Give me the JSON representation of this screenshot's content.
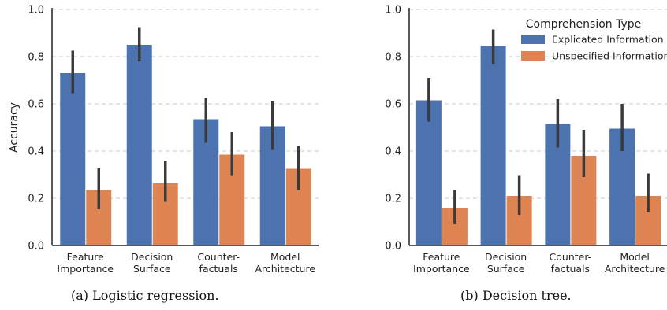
{
  "chart_data": [
    {
      "type": "bar",
      "caption": "(a) Logistic regression.",
      "ylabel": "Accuracy",
      "ylim": [
        0,
        1.0
      ],
      "yticks": [
        "0.0",
        "0.2",
        "0.4",
        "0.6",
        "0.8",
        "1.0"
      ],
      "grid": "horizontal-dashed",
      "categories": [
        [
          "Feature",
          "Importance"
        ],
        [
          "Decision",
          "Surface"
        ],
        [
          "Counter-",
          "factuals"
        ],
        [
          "Model",
          "Architecture"
        ]
      ],
      "series": [
        {
          "name": "Explicated Information",
          "color": "#4c72b0",
          "values": [
            0.73,
            0.85,
            0.535,
            0.505
          ],
          "err_low": [
            0.645,
            0.78,
            0.435,
            0.405
          ],
          "err_high": [
            0.825,
            0.925,
            0.625,
            0.61
          ]
        },
        {
          "name": "Unspecified Information",
          "color": "#dd8452",
          "values": [
            0.235,
            0.265,
            0.385,
            0.325
          ],
          "err_low": [
            0.155,
            0.185,
            0.295,
            0.235
          ],
          "err_high": [
            0.33,
            0.36,
            0.48,
            0.42
          ]
        }
      ]
    },
    {
      "type": "bar",
      "caption": "(b) Decision tree.",
      "ylabel": "",
      "ylim": [
        0,
        1.0
      ],
      "yticks": [
        "0.0",
        "0.2",
        "0.4",
        "0.6",
        "0.8",
        "1.0"
      ],
      "grid": "horizontal-dashed",
      "legend": {
        "title": "Comprehension Type",
        "placement": "top-right"
      },
      "categories": [
        [
          "Feature",
          "Importance"
        ],
        [
          "Decision",
          "Surface"
        ],
        [
          "Counter-",
          "factuals"
        ],
        [
          "Model",
          "Architecture"
        ]
      ],
      "series": [
        {
          "name": "Explicated Information",
          "color": "#4c72b0",
          "values": [
            0.615,
            0.845,
            0.515,
            0.495
          ],
          "err_low": [
            0.525,
            0.77,
            0.415,
            0.4
          ],
          "err_high": [
            0.71,
            0.915,
            0.62,
            0.6
          ]
        },
        {
          "name": "Unspecified Information",
          "color": "#dd8452",
          "values": [
            0.16,
            0.21,
            0.38,
            0.21
          ],
          "err_low": [
            0.09,
            0.13,
            0.29,
            0.14
          ],
          "err_high": [
            0.235,
            0.295,
            0.49,
            0.305
          ]
        }
      ]
    }
  ]
}
